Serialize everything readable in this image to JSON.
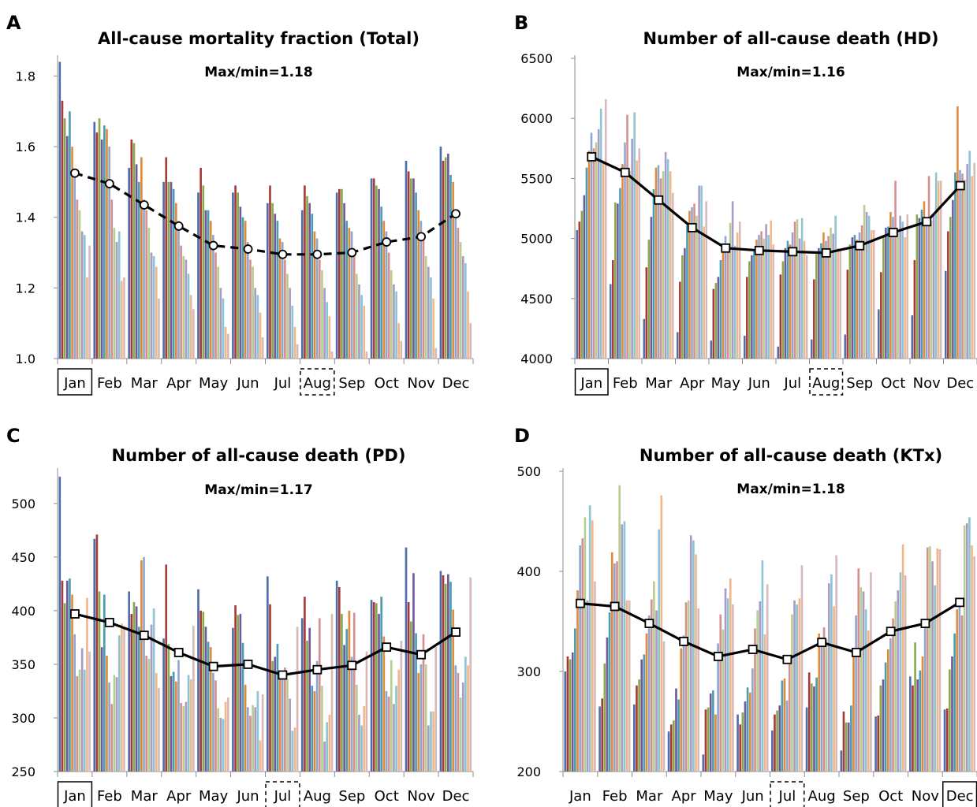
{
  "chart_data": [
    {
      "panel": "A",
      "type": "bar",
      "title": "All-cause mortality fraction (Total)",
      "annotation": "Max/min=1.18",
      "categories": [
        "Jan",
        "Feb",
        "Mar",
        "Apr",
        "May",
        "Jun",
        "Jul",
        "Aug",
        "Sep",
        "Oct",
        "Nov",
        "Dec"
      ],
      "ylim": [
        1.0,
        1.85
      ],
      "yticks": [
        "1.0",
        "1.2",
        "1.4",
        "1.6",
        "1.8"
      ],
      "ytick_values": [
        1.0,
        1.2,
        1.4,
        1.6,
        1.8
      ],
      "highlight_max": "Jan",
      "highlight_min": "Aug",
      "mean_line_style": "dashed",
      "mean_marker": "circle",
      "mean_values": [
        1.525,
        1.495,
        1.435,
        1.375,
        1.32,
        1.31,
        1.295,
        1.295,
        1.3,
        1.33,
        1.345,
        1.41
      ],
      "yearly_bars": [
        [
          1.84,
          1.73,
          1.68,
          1.63,
          1.7,
          1.6,
          1.52,
          1.45,
          1.42,
          1.36,
          1.35,
          1.23,
          1.32
        ],
        [
          1.67,
          1.64,
          1.68,
          1.62,
          1.66,
          1.65,
          1.6,
          1.45,
          1.37,
          1.33,
          1.36,
          1.22,
          1.23
        ],
        [
          1.54,
          1.62,
          1.61,
          1.55,
          1.5,
          1.57,
          1.45,
          1.42,
          1.37,
          1.3,
          1.29,
          1.26,
          1.17
        ],
        [
          1.5,
          1.57,
          1.5,
          1.5,
          1.48,
          1.44,
          1.39,
          1.32,
          1.29,
          1.28,
          1.24,
          1.18,
          1.14
        ],
        [
          1.47,
          1.54,
          1.49,
          1.42,
          1.42,
          1.39,
          1.35,
          1.3,
          1.26,
          1.2,
          1.17,
          1.09,
          1.07
        ],
        [
          1.47,
          1.49,
          1.47,
          1.43,
          1.4,
          1.39,
          1.33,
          1.28,
          1.26,
          1.2,
          1.18,
          1.13,
          1.06
        ],
        [
          1.44,
          1.49,
          1.44,
          1.41,
          1.39,
          1.34,
          1.33,
          1.28,
          1.24,
          1.2,
          1.15,
          1.09,
          1.04
        ],
        [
          1.42,
          1.49,
          1.46,
          1.44,
          1.41,
          1.36,
          1.34,
          1.28,
          1.25,
          1.2,
          1.16,
          1.12,
          1.02
        ],
        [
          1.47,
          1.48,
          1.48,
          1.44,
          1.39,
          1.37,
          1.36,
          1.3,
          1.24,
          1.21,
          1.18,
          1.15,
          1.02
        ],
        [
          1.51,
          1.51,
          1.49,
          1.48,
          1.43,
          1.39,
          1.36,
          1.3,
          1.25,
          1.21,
          1.19,
          1.1,
          1.05
        ],
        [
          1.56,
          1.53,
          1.51,
          1.51,
          1.47,
          1.42,
          1.39,
          1.34,
          1.29,
          1.26,
          1.23,
          1.17,
          1.03
        ],
        [
          1.6,
          1.56,
          1.57,
          1.58,
          1.52,
          1.5,
          1.41,
          1.37,
          1.33,
          1.29,
          1.27,
          1.19,
          1.1
        ]
      ]
    },
    {
      "panel": "B",
      "type": "bar",
      "title": "Number of all-cause death (HD)",
      "annotation": "Max/min=1.16",
      "categories": [
        "Jan",
        "Feb",
        "Mar",
        "Apr",
        "May",
        "Jun",
        "Jul",
        "Aug",
        "Sep",
        "Oct",
        "Nov",
        "Dec"
      ],
      "ylim": [
        4000,
        6500
      ],
      "yticks": [
        "4000",
        "4500",
        "5000",
        "5500",
        "6000",
        "6500"
      ],
      "ytick_values": [
        4000,
        4500,
        5000,
        5500,
        6000,
        6500
      ],
      "highlight_max": "Jan",
      "highlight_min": "Aug",
      "mean_line_style": "solid",
      "mean_marker": "square",
      "mean_values": [
        5680,
        5550,
        5320,
        5090,
        4920,
        4900,
        4890,
        4880,
        4940,
        5050,
        5140,
        5440
      ],
      "yearly_bars": [
        [
          5070,
          5140,
          5230,
          5360,
          5590,
          5730,
          5880,
          5750,
          5800,
          5910,
          6080,
          5640,
          6160
        ],
        [
          4620,
          4820,
          5300,
          5290,
          5420,
          5620,
          5800,
          6030,
          5560,
          5830,
          6050,
          5650,
          5750
        ],
        [
          4330,
          4760,
          4990,
          5180,
          5410,
          5590,
          5610,
          5500,
          5560,
          5720,
          5660,
          5560,
          5380
        ],
        [
          4220,
          4640,
          4860,
          4920,
          5110,
          5230,
          5260,
          5290,
          5190,
          5440,
          5440,
          5100,
          5310
        ],
        [
          4150,
          4580,
          4630,
          4680,
          4820,
          4900,
          5020,
          4940,
          5130,
          5310,
          4940,
          5050,
          5140
        ],
        [
          4190,
          4680,
          4810,
          4860,
          4910,
          4990,
          5030,
          5060,
          5000,
          5120,
          5030,
          5150,
          4950
        ],
        [
          4100,
          4700,
          4810,
          4920,
          4980,
          4950,
          5050,
          5140,
          5160,
          5000,
          5170,
          4980,
          4860
        ],
        [
          4160,
          4660,
          4870,
          4920,
          4960,
          5050,
          4980,
          5020,
          5090,
          5040,
          5190,
          4920,
          4910
        ],
        [
          4200,
          4740,
          4950,
          5010,
          5030,
          4990,
          5050,
          5110,
          5280,
          5220,
          5190,
          5070,
          5070
        ],
        [
          4410,
          4720,
          5010,
          5090,
          5100,
          5220,
          5180,
          5480,
          5050,
          5190,
          5140,
          5010,
          5200
        ],
        [
          4360,
          4820,
          5200,
          5170,
          5240,
          5310,
          5120,
          5520,
          5150,
          5210,
          5550,
          5480,
          5480
        ],
        [
          4730,
          5060,
          5180,
          5320,
          5550,
          6100,
          5570,
          5540,
          5490,
          5620,
          5730,
          5520,
          5630
        ]
      ]
    },
    {
      "panel": "C",
      "type": "bar",
      "title": "Number of all-cause death (PD)",
      "annotation": "Max/min=1.17",
      "categories": [
        "Jan",
        "Feb",
        "Mar",
        "Apr",
        "May",
        "Jun",
        "Jul",
        "Aug",
        "Sep",
        "Oct",
        "Nov",
        "Dec"
      ],
      "ylim": [
        250,
        530
      ],
      "yticks": [
        "250",
        "300",
        "350",
        "400",
        "450",
        "500"
      ],
      "ytick_values": [
        250,
        300,
        350,
        400,
        450,
        500
      ],
      "highlight_max": "Jan",
      "highlight_min": "Jul",
      "mean_line_style": "solid",
      "mean_marker": "square",
      "mean_values": [
        397,
        389,
        377,
        361,
        348,
        350,
        340,
        345,
        349,
        366,
        359,
        380
      ],
      "yearly_bars": [
        [
          525,
          428,
          407,
          428,
          430,
          415,
          378,
          339,
          345,
          365,
          345,
          412,
          362
        ],
        [
          467,
          471,
          418,
          366,
          415,
          358,
          333,
          313,
          340,
          338,
          377,
          388,
          385
        ],
        [
          418,
          397,
          408,
          404,
          385,
          447,
          450,
          358,
          355,
          387,
          402,
          342,
          328
        ],
        [
          374,
          443,
          369,
          339,
          343,
          334,
          354,
          314,
          311,
          315,
          340,
          336,
          386
        ],
        [
          420,
          400,
          399,
          385,
          371,
          366,
          342,
          335,
          309,
          300,
          299,
          315,
          319
        ],
        [
          384,
          405,
          396,
          397,
          370,
          331,
          310,
          302,
          312,
          310,
          325,
          279,
          322
        ],
        [
          432,
          406,
          353,
          357,
          369,
          343,
          337,
          347,
          336,
          318,
          288,
          291,
          385
        ],
        [
          393,
          413,
          372,
          384,
          330,
          325,
          353,
          393,
          330,
          278,
          296,
          303,
          397
        ],
        [
          428,
          422,
          397,
          368,
          383,
          400,
          357,
          398,
          331,
          303,
          293,
          311,
          362
        ],
        [
          410,
          408,
          407,
          397,
          413,
          376,
          325,
          320,
          354,
          313,
          330,
          345,
          372
        ],
        [
          459,
          408,
          390,
          435,
          379,
          342,
          350,
          378,
          350,
          293,
          306,
          306,
          366
        ],
        [
          437,
          433,
          425,
          434,
          427,
          401,
          349,
          342,
          319,
          333,
          357,
          349,
          431
        ]
      ]
    },
    {
      "panel": "D",
      "type": "bar",
      "title": "Number of all-cause death (KTx)",
      "annotation": "Max/min=1.18",
      "categories": [
        "Jan",
        "Feb",
        "Mar",
        "Apr",
        "May",
        "Jun",
        "Jul",
        "Aug",
        "Sep",
        "Oct",
        "Nov",
        "Dec"
      ],
      "ylim": [
        200,
        500
      ],
      "yticks": [
        "200",
        "300",
        "400",
        "500"
      ],
      "ytick_values": [
        200,
        300,
        400,
        500
      ],
      "highlight_max": "Dec",
      "highlight_min": "Jul",
      "mean_line_style": "solid",
      "mean_marker": "square",
      "mean_values": [
        368,
        365,
        348,
        330,
        315,
        322,
        312,
        329,
        319,
        340,
        348,
        369
      ],
      "yearly_bars": [
        [
          300,
          315,
          312,
          319,
          343,
          381,
          426,
          433,
          454,
          371,
          466,
          451,
          390
        ],
        [
          265,
          273,
          308,
          334,
          359,
          419,
          408,
          410,
          486,
          447,
          450,
          371,
          371
        ],
        [
          267,
          286,
          292,
          312,
          317,
          338,
          356,
          372,
          390,
          361,
          442,
          476,
          330
        ],
        [
          240,
          247,
          251,
          283,
          272,
          323,
          336,
          369,
          371,
          436,
          431,
          417,
          363
        ],
        [
          217,
          262,
          264,
          278,
          281,
          257,
          328,
          357,
          342,
          383,
          373,
          393,
          367
        ],
        [
          257,
          247,
          259,
          270,
          284,
          279,
          303,
          343,
          361,
          370,
          411,
          337,
          387
        ],
        [
          241,
          257,
          261,
          266,
          291,
          293,
          271,
          314,
          357,
          371,
          367,
          373,
          406
        ],
        [
          264,
          299,
          288,
          285,
          294,
          338,
          334,
          344,
          332,
          388,
          397,
          365,
          416
        ],
        [
          221,
          260,
          249,
          249,
          266,
          319,
          356,
          403,
          384,
          380,
          362,
          341,
          399
        ],
        [
          255,
          256,
          286,
          292,
          309,
          322,
          333,
          353,
          370,
          381,
          399,
          427,
          396
        ],
        [
          295,
          286,
          329,
          292,
          301,
          315,
          349,
          424,
          425,
          410,
          386,
          423,
          422
        ],
        [
          262,
          263,
          302,
          315,
          338,
          362,
          366,
          356,
          446,
          448,
          454,
          426,
          415
        ]
      ]
    }
  ],
  "bar_colors": [
    "#4F6DA8",
    "#A63A3A",
    "#8AA84A",
    "#6E5A99",
    "#4A9DB5",
    "#E08A3A",
    "#8FA7D0",
    "#D48F8F",
    "#B8CD8F",
    "#A89BC4",
    "#8CC4D6",
    "#F0B887",
    "#D8B8B8"
  ],
  "line_color": "#000000",
  "box_style": {
    "max": "solid",
    "min": "dashed"
  }
}
